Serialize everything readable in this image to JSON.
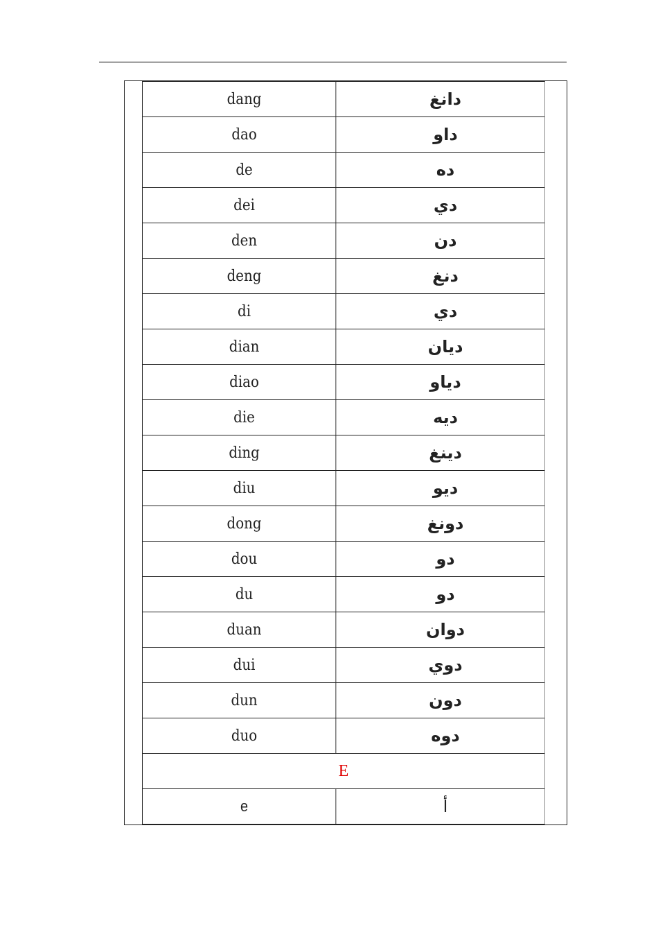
{
  "rows": [
    {
      "pinyin": "dang",
      "arabic": "دانغ"
    },
    {
      "pinyin": "dao",
      "arabic": "داو"
    },
    {
      "pinyin": "de",
      "arabic": "ده"
    },
    {
      "pinyin": "dei",
      "arabic": "دي"
    },
    {
      "pinyin": "den",
      "arabic": "دن"
    },
    {
      "pinyin": "deng",
      "arabic": "دنغ"
    },
    {
      "pinyin": "di",
      "arabic": "دي"
    },
    {
      "pinyin": "dian",
      "arabic": "ديان"
    },
    {
      "pinyin": "diao",
      "arabic": "دياو"
    },
    {
      "pinyin": "die",
      "arabic": "ديه"
    },
    {
      "pinyin": "ding",
      "arabic": "دينغ"
    },
    {
      "pinyin": "diu",
      "arabic": "ديو"
    },
    {
      "pinyin": "dong",
      "arabic": "دونغ"
    },
    {
      "pinyin": "dou",
      "arabic": "دو"
    },
    {
      "pinyin": "du",
      "arabic": "دو"
    },
    {
      "pinyin": "duan",
      "arabic": "دوان"
    },
    {
      "pinyin": "dui",
      "arabic": "دوي"
    },
    {
      "pinyin": "dun",
      "arabic": "دون"
    },
    {
      "pinyin": "duo",
      "arabic": "دوه"
    }
  ],
  "section_header": {
    "label": "E",
    "color": "#e00000"
  },
  "last_row": {
    "pinyin": "e",
    "arabic": "أ"
  }
}
